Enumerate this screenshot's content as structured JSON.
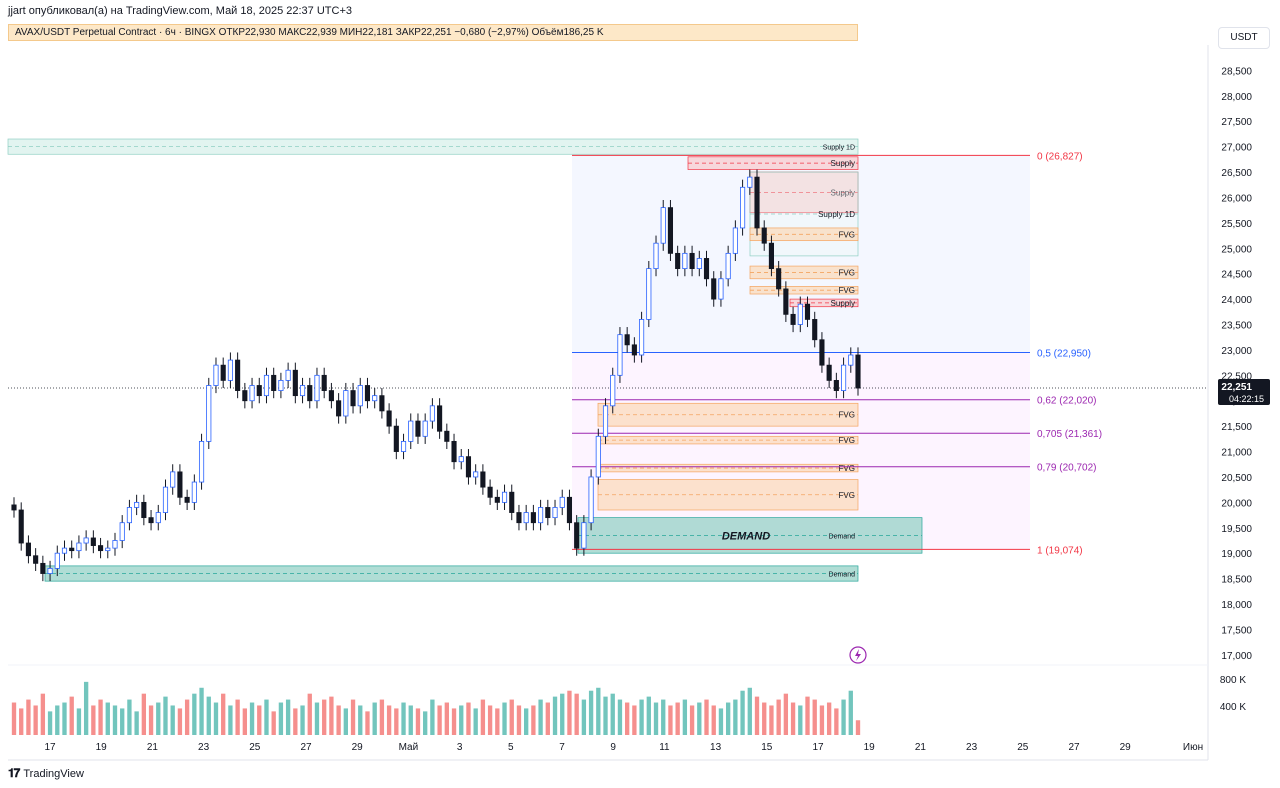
{
  "header": {
    "publisher": "jjart опубликовал(а) на TradingView.com, Май 18, 2025 22:37 UTC+3",
    "legend": "AVAX/USDT Perpetual Contract · 6ч · BINGX  ОТКР22,930  МАКС22,939  МИН22,181  ЗАКР22,251  −0,680 (−2,97%)  Объём186,25 K",
    "currency": "USDT"
  },
  "footer": {
    "brand": "TradingView",
    "logo_icon": "tradingview-logo-icon"
  },
  "colors": {
    "up": "#26a69a",
    "down": "#ef5350",
    "up_body": "#ffffff",
    "down_body": "#131722",
    "candle_wick": "#131722",
    "up_outline": "#2962ff",
    "fvg_fill": "#fbd9b8",
    "supply_fill": "#f8c9cc",
    "demand_fill": "#8fcfc3",
    "fib_red": "#f23645",
    "fib_blue": "#2962ff",
    "fib_purple": "#9c27b0"
  },
  "chart_data": {
    "type": "candlestick",
    "symbol": "AVAX/USDT Perpetual Contract",
    "timeframe": "6ч",
    "exchange": "BINGX",
    "ohlc_last": {
      "open": 22.93,
      "high": 22.939,
      "low": 22.181,
      "close": 22.251,
      "change": "−0,680 (−2,97%)",
      "volume": "186,25 K"
    },
    "last_price_label": "22,251",
    "countdown_label": "04:22:15",
    "y_axis_ticks": [
      "28,500",
      "28,000",
      "27,500",
      "27,000",
      "26,500",
      "26,000",
      "25,500",
      "25,000",
      "24,500",
      "24,000",
      "23,500",
      "23,000",
      "22,500",
      "22,000",
      "21,500",
      "21,000",
      "20,500",
      "20,000",
      "19,500",
      "19,000",
      "18,500",
      "18,000",
      "17,500",
      "17,000"
    ],
    "y_range": [
      16.8,
      29.0
    ],
    "x_axis_ticks": [
      "17",
      "19",
      "21",
      "23",
      "25",
      "27",
      "29",
      "Май",
      "3",
      "5",
      "7",
      "9",
      "11",
      "13",
      "15",
      "17",
      "19",
      "21",
      "23",
      "25",
      "27",
      "29",
      "Июн"
    ],
    "volume_axis_ticks": [
      "800 K",
      "400 K"
    ],
    "closes": [
      19.85,
      19.2,
      18.95,
      18.8,
      18.6,
      18.7,
      19.0,
      19.1,
      19.05,
      19.2,
      19.3,
      19.15,
      19.05,
      19.1,
      19.25,
      19.6,
      19.9,
      20.0,
      19.7,
      19.6,
      19.8,
      20.3,
      20.6,
      20.1,
      20.0,
      20.4,
      21.2,
      22.3,
      22.7,
      22.4,
      22.8,
      22.2,
      22.0,
      22.3,
      22.1,
      22.5,
      22.2,
      22.4,
      22.6,
      22.1,
      22.3,
      22.0,
      22.5,
      22.2,
      22.0,
      21.7,
      22.2,
      21.9,
      22.3,
      22.0,
      22.1,
      21.8,
      21.5,
      21.0,
      21.2,
      21.6,
      21.3,
      21.6,
      21.9,
      21.4,
      21.2,
      20.8,
      20.9,
      20.5,
      20.6,
      20.3,
      20.1,
      20.0,
      20.2,
      19.8,
      19.6,
      19.8,
      19.6,
      19.9,
      19.7,
      19.9,
      20.1,
      19.6,
      19.1,
      19.6,
      20.5,
      21.3,
      21.9,
      22.5,
      23.3,
      23.1,
      22.9,
      23.6,
      24.6,
      25.1,
      25.8,
      24.9,
      24.6,
      24.9,
      24.6,
      24.8,
      24.4,
      24.0,
      24.4,
      24.9,
      25.4,
      26.2,
      26.4,
      25.4,
      25.1,
      24.6,
      24.2,
      23.7,
      23.5,
      23.9,
      23.6,
      23.2,
      22.7,
      22.4,
      22.2,
      22.7,
      22.9,
      22.25
    ],
    "volumes": [
      0.55,
      0.45,
      0.6,
      0.5,
      0.7,
      0.4,
      0.5,
      0.55,
      0.65,
      0.45,
      0.9,
      0.5,
      0.6,
      0.55,
      0.5,
      0.45,
      0.6,
      0.4,
      0.7,
      0.5,
      0.55,
      0.65,
      0.5,
      0.45,
      0.6,
      0.7,
      0.8,
      0.65,
      0.55,
      0.7,
      0.5,
      0.6,
      0.45,
      0.55,
      0.5,
      0.6,
      0.4,
      0.55,
      0.6,
      0.45,
      0.5,
      0.7,
      0.55,
      0.6,
      0.65,
      0.5,
      0.45,
      0.6,
      0.5,
      0.4,
      0.55,
      0.6,
      0.5,
      0.45,
      0.55,
      0.5,
      0.45,
      0.4,
      0.6,
      0.5,
      0.55,
      0.45,
      0.5,
      0.55,
      0.45,
      0.6,
      0.5,
      0.45,
      0.55,
      0.6,
      0.5,
      0.45,
      0.5,
      0.6,
      0.55,
      0.65,
      0.7,
      0.75,
      0.7,
      0.6,
      0.75,
      0.8,
      0.65,
      0.7,
      0.6,
      0.55,
      0.5,
      0.6,
      0.65,
      0.55,
      0.6,
      0.5,
      0.55,
      0.6,
      0.5,
      0.55,
      0.6,
      0.5,
      0.45,
      0.55,
      0.6,
      0.75,
      0.8,
      0.65,
      0.55,
      0.5,
      0.6,
      0.7,
      0.55,
      0.5,
      0.65,
      0.6,
      0.5,
      0.55,
      0.45,
      0.6,
      0.75,
      0.25
    ],
    "fib_levels": [
      {
        "label": "0 (26,827)",
        "value": 26.827,
        "color": "#f23645"
      },
      {
        "label": "0,5 (22,950)",
        "value": 22.95,
        "color": "#2962ff"
      },
      {
        "label": "0,62 (22,020)",
        "value": 22.02,
        "color": "#9c27b0"
      },
      {
        "label": "0,705 (21,361)",
        "value": 21.361,
        "color": "#9c27b0"
      },
      {
        "label": "0,79 (20,702)",
        "value": 20.702,
        "color": "#9c27b0"
      },
      {
        "label": "1 (19,074)",
        "value": 19.074,
        "color": "#f23645"
      }
    ],
    "zones": [
      {
        "label": "Supply 1D",
        "kind": "supply1d",
        "top": 27.15,
        "bottom": 26.85,
        "start": 0,
        "end": 1
      },
      {
        "label": "Supply",
        "kind": "supply",
        "top": 26.8,
        "bottom": 26.55,
        "start": 0.81,
        "end": 1
      },
      {
        "label": "Supply",
        "kind": "supply",
        "top": 26.5,
        "bottom": 25.7,
        "start": 0.86,
        "end": 1
      },
      {
        "label": "Supply 1D",
        "kind": "supply1d_small",
        "top": 26.5,
        "bottom": 24.85,
        "start": 0.86,
        "end": 1
      },
      {
        "label": "FVG",
        "kind": "fvg",
        "top": 25.4,
        "bottom": 25.15,
        "start": 0.88,
        "end": 1
      },
      {
        "label": "FVG",
        "kind": "fvg",
        "top": 24.65,
        "bottom": 24.4,
        "start": 0.88,
        "end": 1
      },
      {
        "label": "FVG",
        "kind": "fvg",
        "top": 24.25,
        "bottom": 24.1,
        "start": 0.89,
        "end": 1
      },
      {
        "label": "Supply",
        "kind": "supply",
        "top": 24.0,
        "bottom": 23.85,
        "start": 0.92,
        "end": 1
      },
      {
        "label": "FVG",
        "kind": "fvg",
        "top": 21.95,
        "bottom": 21.5,
        "start": 0.69,
        "end": 1
      },
      {
        "label": "FVG",
        "kind": "fvg",
        "top": 21.3,
        "bottom": 21.15,
        "start": 0.69,
        "end": 1
      },
      {
        "label": "FVG",
        "kind": "fvg",
        "top": 20.75,
        "bottom": 20.6,
        "start": 0.68,
        "end": 1
      },
      {
        "label": "FVG",
        "kind": "fvg",
        "top": 20.45,
        "bottom": 19.85,
        "start": 0.67,
        "end": 1
      },
      {
        "label": "Demand",
        "kind": "demand",
        "top": 19.7,
        "bottom": 19.0,
        "start": 0.666,
        "end": 1
      },
      {
        "label": "Demand",
        "kind": "demand",
        "top": 18.75,
        "bottom": 18.45,
        "start": 0.04,
        "end": 1
      }
    ],
    "demand_big_label": "DEMAND",
    "lightning_icon": "lightning-icon"
  }
}
